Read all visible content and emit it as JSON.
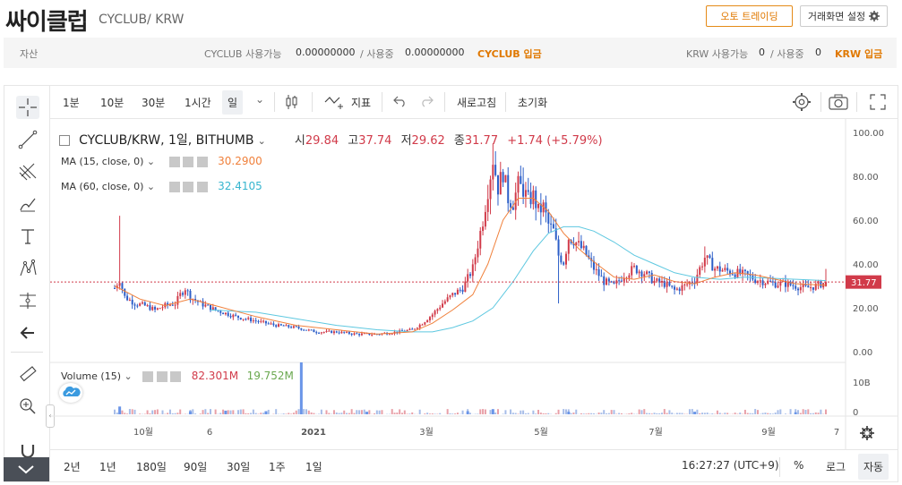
{
  "header": {
    "title": "싸이클럽",
    "subtitle": "CYCLUB/ KRW",
    "auto_trade_label": "오토 트레이딩",
    "settings_label": "거래화면 설정",
    "settings_icon": "gear-icon"
  },
  "asset_bar": {
    "label": "자산",
    "cyclub_label": "CYCLUB 사용가능",
    "cyclub_available": "0.00000000",
    "cyclub_sep": "/ 사용중",
    "cyclub_in_use": "0.00000000",
    "cyclub_deposit": "CYCLUB 입금",
    "krw_label": "KRW 사용가능",
    "krw_available": "0",
    "krw_sep": "/ 사용중",
    "krw_in_use": "0",
    "krw_deposit": "KRW 입금"
  },
  "top_toolbar": {
    "intervals": [
      "1분",
      "10분",
      "30분",
      "1시간",
      "일"
    ],
    "active_interval": "일",
    "indicators_label": "지표",
    "refresh_label": "새로고침",
    "reset_label": "초기화"
  },
  "legend": {
    "symbol": "CYCLUB/KRW, 1일, BITHUMB",
    "open_label": "시",
    "open": "29.84",
    "high_label": "고",
    "high": "37.74",
    "low_label": "저",
    "low": "29.62",
    "close_label": "종",
    "close": "31.77",
    "change": "+1.74 (+5.79%)",
    "ma15_label": "MA (15, close, 0)",
    "ma15_value": "30.2900",
    "ma60_label": "MA (60, close, 0)",
    "ma60_value": "32.4105",
    "volume_label": "Volume (15)",
    "volume_value": "82.301M",
    "volume_ma_value": "19.752M"
  },
  "colors": {
    "up": "#d13b4a",
    "down": "#2c5ec8",
    "ma15": "#f0813c",
    "ma60": "#5ec8e0",
    "price_tag": "#d13b4a",
    "accent": "#e07800"
  },
  "bottom_toolbar": {
    "ranges": [
      "2년",
      "1년",
      "180일",
      "90일",
      "30일",
      "1주",
      "1일"
    ],
    "time": "16:27:27 (UTC+9)",
    "percent_label": "%",
    "log_label": "로그",
    "auto_label": "자동"
  },
  "chart_data": {
    "type": "candlestick",
    "y_ticks": [
      "100.00",
      "80.00",
      "60.00",
      "40.00",
      "20.00",
      "0.00"
    ],
    "ylim": [
      0,
      100
    ],
    "volume_ticks": [
      "10B",
      "0"
    ],
    "x_ticks": [
      "10월",
      "6",
      "2021",
      "3월",
      "5월",
      "7월",
      "9월",
      "7"
    ],
    "last_price_label": "31.77",
    "close_path": [
      [
        0,
        29
      ],
      [
        2,
        33
      ],
      [
        4,
        25
      ],
      [
        8,
        22
      ],
      [
        12,
        21
      ],
      [
        16,
        19
      ],
      [
        20,
        21
      ],
      [
        24,
        22
      ],
      [
        26,
        26
      ],
      [
        28,
        29
      ],
      [
        30,
        25
      ],
      [
        34,
        22
      ],
      [
        40,
        19
      ],
      [
        48,
        16
      ],
      [
        56,
        14
      ],
      [
        64,
        12
      ],
      [
        72,
        11
      ],
      [
        80,
        9
      ],
      [
        88,
        9
      ],
      [
        96,
        8
      ],
      [
        104,
        8
      ],
      [
        112,
        9
      ],
      [
        118,
        10
      ],
      [
        122,
        13
      ],
      [
        126,
        17
      ],
      [
        130,
        22
      ],
      [
        134,
        26
      ],
      [
        138,
        29
      ],
      [
        142,
        38
      ],
      [
        146,
        60
      ],
      [
        150,
        88
      ],
      [
        152,
        75
      ],
      [
        154,
        82
      ],
      [
        156,
        70
      ],
      [
        158,
        68
      ],
      [
        160,
        76
      ],
      [
        162,
        74
      ],
      [
        164,
        69
      ],
      [
        166,
        71
      ],
      [
        168,
        64
      ],
      [
        170,
        66
      ],
      [
        172,
        58
      ],
      [
        174,
        55
      ],
      [
        176,
        44
      ],
      [
        178,
        41
      ],
      [
        180,
        52
      ],
      [
        182,
        51
      ],
      [
        186,
        46
      ],
      [
        190,
        38
      ],
      [
        194,
        32
      ],
      [
        198,
        30
      ],
      [
        202,
        35
      ],
      [
        206,
        38
      ],
      [
        210,
        36
      ],
      [
        214,
        32
      ],
      [
        218,
        31
      ],
      [
        222,
        28
      ],
      [
        226,
        30
      ],
      [
        230,
        33
      ],
      [
        234,
        43
      ],
      [
        238,
        38
      ],
      [
        242,
        37
      ],
      [
        246,
        36
      ],
      [
        250,
        35
      ],
      [
        254,
        33
      ],
      [
        258,
        32
      ],
      [
        262,
        31
      ],
      [
        266,
        31
      ],
      [
        270,
        30
      ],
      [
        274,
        29
      ],
      [
        278,
        30
      ],
      [
        282,
        31.77
      ]
    ],
    "ma15_path": [
      [
        0,
        30
      ],
      [
        10,
        24
      ],
      [
        20,
        21
      ],
      [
        30,
        24
      ],
      [
        40,
        21
      ],
      [
        56,
        16
      ],
      [
        72,
        12
      ],
      [
        88,
        10
      ],
      [
        104,
        8
      ],
      [
        118,
        9
      ],
      [
        126,
        13
      ],
      [
        134,
        19
      ],
      [
        142,
        26
      ],
      [
        148,
        40
      ],
      [
        154,
        60
      ],
      [
        160,
        70
      ],
      [
        166,
        70
      ],
      [
        172,
        64
      ],
      [
        178,
        54
      ],
      [
        184,
        47
      ],
      [
        190,
        41
      ],
      [
        198,
        34
      ],
      [
        206,
        33
      ],
      [
        214,
        35
      ],
      [
        222,
        32
      ],
      [
        230,
        31
      ],
      [
        238,
        34
      ],
      [
        246,
        36
      ],
      [
        254,
        35
      ],
      [
        262,
        33
      ],
      [
        270,
        31
      ],
      [
        282,
        30.29
      ]
    ],
    "ma60_path": [
      [
        38,
        19
      ],
      [
        56,
        18
      ],
      [
        72,
        15
      ],
      [
        88,
        12
      ],
      [
        104,
        10
      ],
      [
        118,
        9
      ],
      [
        126,
        9
      ],
      [
        134,
        11
      ],
      [
        142,
        14
      ],
      [
        150,
        20
      ],
      [
        158,
        32
      ],
      [
        166,
        46
      ],
      [
        172,
        54
      ],
      [
        178,
        57
      ],
      [
        184,
        57
      ],
      [
        190,
        55
      ],
      [
        198,
        50
      ],
      [
        206,
        44
      ],
      [
        214,
        40
      ],
      [
        222,
        36
      ],
      [
        230,
        34
      ],
      [
        240,
        33
      ],
      [
        250,
        34
      ],
      [
        260,
        33.5
      ],
      [
        270,
        33
      ],
      [
        282,
        32.41
      ]
    ],
    "volume_spikes": [
      [
        74,
        1.0
      ],
      [
        2,
        0.15
      ],
      [
        30,
        0.06
      ],
      [
        44,
        0.07
      ],
      [
        60,
        0.06
      ],
      [
        100,
        0.05
      ],
      [
        140,
        0.06
      ],
      [
        150,
        0.1
      ],
      [
        180,
        0.05
      ],
      [
        230,
        0.05
      ],
      [
        270,
        0.04
      ]
    ]
  }
}
